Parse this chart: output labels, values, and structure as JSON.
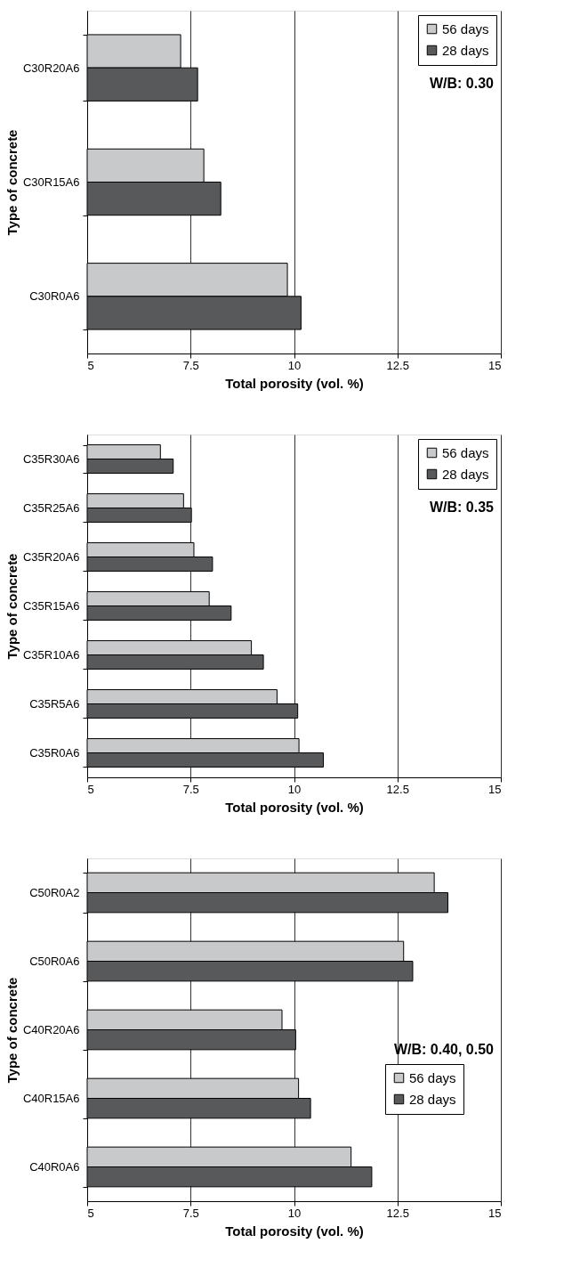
{
  "chart_data": [
    {
      "type": "bar",
      "orientation": "horizontal",
      "categories": [
        "C30R20A6",
        "C30R15A6",
        "C30R0A6"
      ],
      "series": [
        {
          "name": "56 days",
          "color": "#c8c9cb",
          "values": [
            7.26,
            7.82,
            9.84
          ]
        },
        {
          "name": "28 days",
          "color": "#58595b",
          "values": [
            7.67,
            8.23,
            10.17
          ]
        }
      ],
      "xlim": [
        5,
        15
      ],
      "xticks": [
        5,
        7.5,
        10,
        12.5,
        15
      ],
      "xlabel": "Total porosity (vol. %)",
      "ylabel": "Type of concrete",
      "grid": "x",
      "legend": "top right",
      "annotations": [
        "W/B: 0.30"
      ]
    },
    {
      "type": "bar",
      "orientation": "horizontal",
      "categories": [
        "C35R30A6",
        "C35R25A6",
        "C35R20A6",
        "C35R15A6",
        "C35R10A6",
        "C35R5A6",
        "C35R0A6"
      ],
      "series": [
        {
          "name": "56 days",
          "color": "#c8c9cb",
          "values": [
            6.77,
            7.33,
            7.58,
            7.95,
            8.97,
            9.59,
            10.12
          ]
        },
        {
          "name": "28 days",
          "color": "#58595b",
          "values": [
            7.08,
            7.52,
            8.03,
            8.48,
            9.26,
            10.09,
            10.71
          ]
        }
      ],
      "xlim": [
        5,
        15
      ],
      "xticks": [
        5,
        7.5,
        10,
        12.5,
        15
      ],
      "xlabel": "Total porosity (vol. %)",
      "ylabel": "Type of concrete",
      "grid": "x",
      "legend": "top right",
      "annotations": [
        "W/B: 0.35"
      ]
    },
    {
      "type": "bar",
      "orientation": "horizontal",
      "categories": [
        "C50R0A2",
        "C50R0A6",
        "C40R20A6",
        "C40R15A6",
        "C40R0A6"
      ],
      "series": [
        {
          "name": "56 days",
          "color": "#c8c9cb",
          "values": [
            13.39,
            12.65,
            9.71,
            10.11,
            11.38
          ]
        },
        {
          "name": "28 days",
          "color": "#58595b",
          "values": [
            13.72,
            12.87,
            10.04,
            10.4,
            11.88
          ]
        }
      ],
      "xlim": [
        5,
        15
      ],
      "xticks": [
        5,
        7.5,
        10,
        12.5,
        15
      ],
      "xlabel": "Total porosity (vol. %)",
      "ylabel": "Type of concrete",
      "grid": "x",
      "legend": "right",
      "annotations": [
        "W/B: 0.40, 0.50"
      ]
    }
  ]
}
